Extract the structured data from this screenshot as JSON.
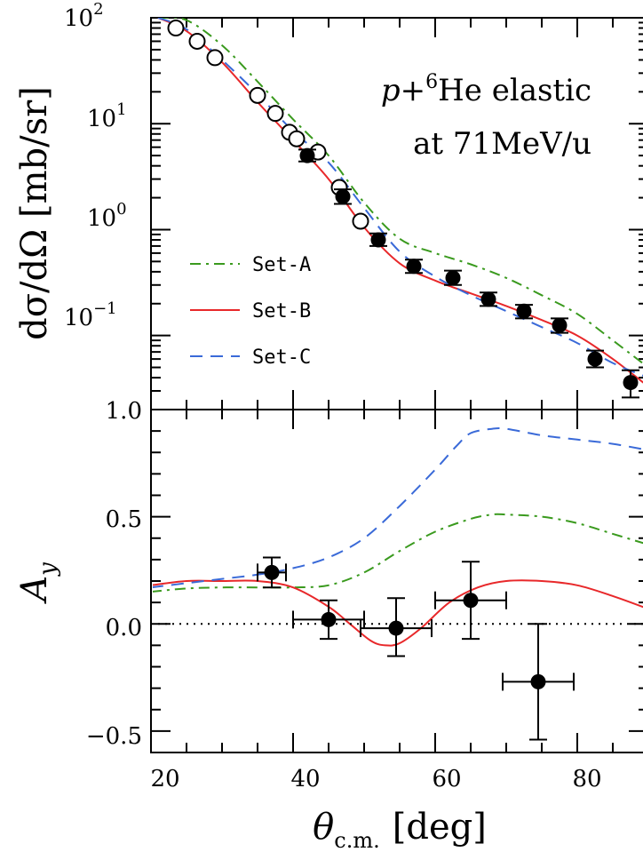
{
  "chart_data": [
    {
      "type": "line",
      "panel": "top",
      "title_line1": "p+",
      "title_sup": "6",
      "title_line1_rest": "He elastic",
      "title_line2": "at 71MeV/u",
      "ylabel": "dσ/dΩ [mb/sr]",
      "yscale": "log",
      "xlim": [
        20,
        90
      ],
      "ylim": [
        0.02,
        100
      ],
      "y_ticks": [
        {
          "value": 100,
          "base": "10",
          "exp": "2"
        },
        {
          "value": 10,
          "base": "10",
          "exp": "1"
        },
        {
          "value": 1,
          "base": "10",
          "exp": "0"
        },
        {
          "value": 0.1,
          "base": "10",
          "exp": "−1"
        }
      ],
      "series": [
        {
          "name": "Set-A",
          "color": "#3a9a1e",
          "dash": "dashdot",
          "x": [
            21,
            25,
            30,
            35,
            40,
            45,
            50,
            55,
            60,
            65,
            70,
            75,
            80,
            85,
            90
          ],
          "y": [
            100,
            95,
            55,
            25,
            11,
            5,
            1.8,
            0.82,
            0.6,
            0.47,
            0.35,
            0.24,
            0.16,
            0.09,
            0.05
          ]
        },
        {
          "name": "Set-B",
          "color": "#e8282a",
          "dash": "solid",
          "x": [
            21,
            25,
            30,
            35,
            40,
            45,
            50,
            55,
            60,
            65,
            70,
            75,
            80,
            85,
            90
          ],
          "y": [
            100,
            75,
            38,
            16,
            7,
            3,
            1.05,
            0.48,
            0.33,
            0.25,
            0.19,
            0.14,
            0.1,
            0.06,
            0.033
          ]
        },
        {
          "name": "Set-C",
          "color": "#3a6ad8",
          "dash": "dashed",
          "x": [
            21,
            25,
            30,
            35,
            40,
            45,
            50,
            55,
            60,
            65,
            70,
            75,
            80,
            85,
            90
          ],
          "y": [
            100,
            78,
            40,
            19,
            8.5,
            4.3,
            1.6,
            0.62,
            0.36,
            0.24,
            0.17,
            0.12,
            0.085,
            0.055,
            0.04
          ]
        }
      ],
      "open_points": {
        "x": [
          23.5,
          26.5,
          29,
          35,
          37.5,
          39.5,
          40.5,
          43.5,
          46.5,
          49.5
        ],
        "y": [
          80,
          60,
          42,
          18.5,
          12.5,
          8.3,
          7.2,
          5.4,
          2.5,
          1.2
        ]
      },
      "filled_points": {
        "x": [
          42,
          47,
          52,
          57,
          62.5,
          67.5,
          72.5,
          77.5,
          82.5,
          87.5
        ],
        "y": [
          5.0,
          2.05,
          0.8,
          0.45,
          0.35,
          0.22,
          0.17,
          0.125,
          0.06,
          0.036
        ],
        "ylo": [
          4.4,
          1.75,
          0.7,
          0.39,
          0.3,
          0.19,
          0.145,
          0.106,
          0.05,
          0.026
        ],
        "yhi": [
          5.7,
          2.4,
          0.92,
          0.52,
          0.41,
          0.255,
          0.195,
          0.145,
          0.072,
          0.047
        ]
      },
      "legend": [
        "Set-A",
        "Set-B",
        "Set-C"
      ]
    },
    {
      "type": "line",
      "panel": "bottom",
      "ylabel_base": "A",
      "ylabel_sub": "y",
      "xlabel_base": "θ",
      "xlabel_sub": "c.m.",
      "xlabel_unit": "[deg]",
      "xlim": [
        20,
        90
      ],
      "ylim": [
        -0.6,
        1.0
      ],
      "x_ticks": [
        "20",
        "40",
        "60",
        "80"
      ],
      "y_ticks": [
        "1.0",
        "0.5",
        "0.0",
        "−0.5"
      ],
      "series": [
        {
          "name": "Set-A",
          "color": "#3a9a1e",
          "dash": "dashdot",
          "x": [
            20,
            25,
            30,
            35,
            40,
            45,
            50,
            55,
            60,
            65,
            68,
            70,
            75,
            80,
            85,
            90
          ],
          "y": [
            0.15,
            0.165,
            0.17,
            0.17,
            0.17,
            0.18,
            0.24,
            0.34,
            0.43,
            0.49,
            0.51,
            0.51,
            0.5,
            0.47,
            0.42,
            0.37
          ]
        },
        {
          "name": "Set-B",
          "color": "#e8282a",
          "dash": "solid",
          "x": [
            20,
            25,
            30,
            35,
            40,
            45,
            48,
            51,
            53,
            55,
            58,
            62,
            66,
            70,
            75,
            80,
            85,
            90
          ],
          "y": [
            0.18,
            0.2,
            0.2,
            0.2,
            0.17,
            0.08,
            0.0,
            -0.08,
            -0.1,
            -0.09,
            -0.02,
            0.1,
            0.17,
            0.2,
            0.2,
            0.18,
            0.13,
            0.07
          ]
        },
        {
          "name": "Set-C",
          "color": "#3a6ad8",
          "dash": "dashed",
          "x": [
            20,
            25,
            30,
            35,
            40,
            45,
            50,
            55,
            60,
            63,
            65,
            68,
            70,
            75,
            80,
            85,
            90
          ],
          "y": [
            0.17,
            0.19,
            0.21,
            0.23,
            0.26,
            0.31,
            0.4,
            0.55,
            0.72,
            0.83,
            0.89,
            0.91,
            0.91,
            0.88,
            0.86,
            0.84,
            0.81
          ]
        }
      ],
      "zero_line": {
        "y": 0.0,
        "style": "dotted"
      },
      "points": {
        "x": [
          37,
          45,
          54.5,
          65,
          74.5
        ],
        "y": [
          0.24,
          0.02,
          -0.02,
          0.11,
          -0.27
        ],
        "xerr": [
          2,
          5,
          5,
          5,
          5
        ],
        "ylo": [
          0.17,
          -0.07,
          -0.15,
          -0.07,
          -0.54
        ],
        "yhi": [
          0.31,
          0.11,
          0.12,
          0.29,
          0.0
        ]
      }
    }
  ]
}
